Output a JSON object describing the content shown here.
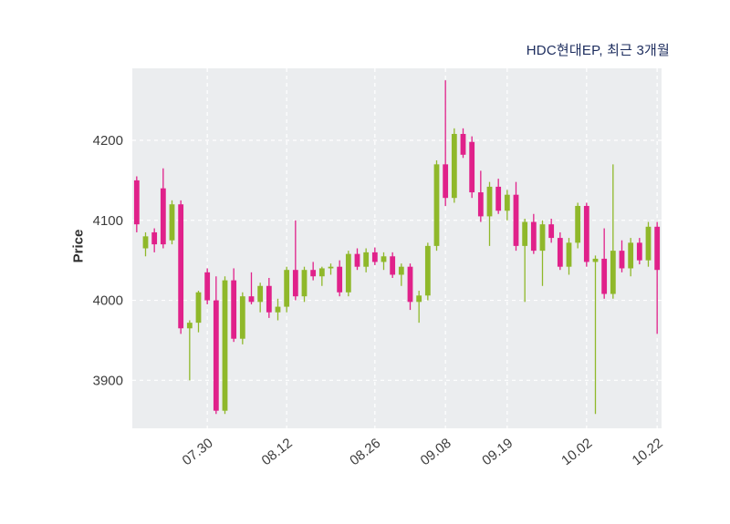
{
  "chart_data": {
    "type": "candlestick",
    "title": "HDC현대EP, 최근 3개월",
    "ylabel": "Price",
    "xlabel": "",
    "ylim": [
      3840,
      4290
    ],
    "y_ticks": [
      3900,
      4000,
      4100,
      4200
    ],
    "x_tick_labels": [
      "07.30",
      "08.12",
      "08.26",
      "09.08",
      "09.19",
      "10.02",
      "10.22"
    ],
    "x_tick_indices": [
      9,
      18,
      28,
      36,
      43,
      52,
      60
    ],
    "grid": "dashed",
    "legend": "none",
    "colors": {
      "up": "#8fb82a",
      "down": "#e0218a",
      "plot_bg": "#ebedef",
      "grid": "#ffffff",
      "tick_text": "#3d3d3d"
    },
    "ohlc_format": [
      "open",
      "high",
      "low",
      "close"
    ],
    "candles": [
      [
        4150,
        4155,
        4085,
        4095
      ],
      [
        4065,
        4085,
        4055,
        4080
      ],
      [
        4085,
        4090,
        4060,
        4070
      ],
      [
        4140,
        4165,
        4065,
        4070
      ],
      [
        4075,
        4125,
        4070,
        4120
      ],
      [
        4120,
        4125,
        3958,
        3965
      ],
      [
        3965,
        3975,
        3900,
        3972
      ],
      [
        3972,
        4012,
        3960,
        4010
      ],
      [
        4035,
        4040,
        3995,
        4000
      ],
      [
        4000,
        4030,
        3858,
        3862
      ],
      [
        3862,
        4030,
        3858,
        4025
      ],
      [
        4025,
        4040,
        3948,
        3952
      ],
      [
        3952,
        4010,
        3945,
        4005
      ],
      [
        4005,
        4035,
        3995,
        3998
      ],
      [
        3998,
        4022,
        3985,
        4018
      ],
      [
        4018,
        4028,
        3978,
        3985
      ],
      [
        3985,
        4002,
        3975,
        3992
      ],
      [
        3992,
        4042,
        3985,
        4038
      ],
      [
        4038,
        4100,
        4000,
        4005
      ],
      [
        4005,
        4042,
        3998,
        4038
      ],
      [
        4038,
        4048,
        4025,
        4030
      ],
      [
        4030,
        4042,
        4018,
        4040
      ],
      [
        4040,
        4046,
        4032,
        4042
      ],
      [
        4042,
        4050,
        4005,
        4010
      ],
      [
        4010,
        4062,
        4005,
        4058
      ],
      [
        4058,
        4065,
        4038,
        4042
      ],
      [
        4042,
        4065,
        4035,
        4060
      ],
      [
        4060,
        4066,
        4044,
        4048
      ],
      [
        4048,
        4060,
        4038,
        4055
      ],
      [
        4055,
        4060,
        4028,
        4032
      ],
      [
        4032,
        4046,
        4018,
        4042
      ],
      [
        4042,
        4046,
        3988,
        3998
      ],
      [
        3998,
        4012,
        3972,
        4006
      ],
      [
        4006,
        4072,
        4000,
        4068
      ],
      [
        4068,
        4175,
        4062,
        4170
      ],
      [
        4170,
        4275,
        4118,
        4128
      ],
      [
        4128,
        4215,
        4122,
        4208
      ],
      [
        4208,
        4215,
        4178,
        4182
      ],
      [
        4198,
        4205,
        4128,
        4135
      ],
      [
        4135,
        4162,
        4098,
        4105
      ],
      [
        4105,
        4148,
        4068,
        4142
      ],
      [
        4142,
        4152,
        4108,
        4112
      ],
      [
        4112,
        4138,
        4100,
        4132
      ],
      [
        4132,
        4148,
        4062,
        4068
      ],
      [
        4068,
        4102,
        3998,
        4098
      ],
      [
        4098,
        4108,
        4058,
        4062
      ],
      [
        4062,
        4100,
        4018,
        4095
      ],
      [
        4095,
        4102,
        4072,
        4078
      ],
      [
        4078,
        4085,
        4038,
        4042
      ],
      [
        4042,
        4078,
        4032,
        4072
      ],
      [
        4072,
        4122,
        4065,
        4118
      ],
      [
        4118,
        4122,
        4042,
        4048
      ],
      [
        4048,
        4056,
        3858,
        4052
      ],
      [
        4052,
        4090,
        4002,
        4008
      ],
      [
        4008,
        4170,
        4002,
        4062
      ],
      [
        4062,
        4075,
        4035,
        4040
      ],
      [
        4040,
        4078,
        4030,
        4072
      ],
      [
        4072,
        4078,
        4045,
        4050
      ],
      [
        4050,
        4098,
        4042,
        4092
      ],
      [
        4092,
        4098,
        3958,
        4038
      ]
    ]
  }
}
